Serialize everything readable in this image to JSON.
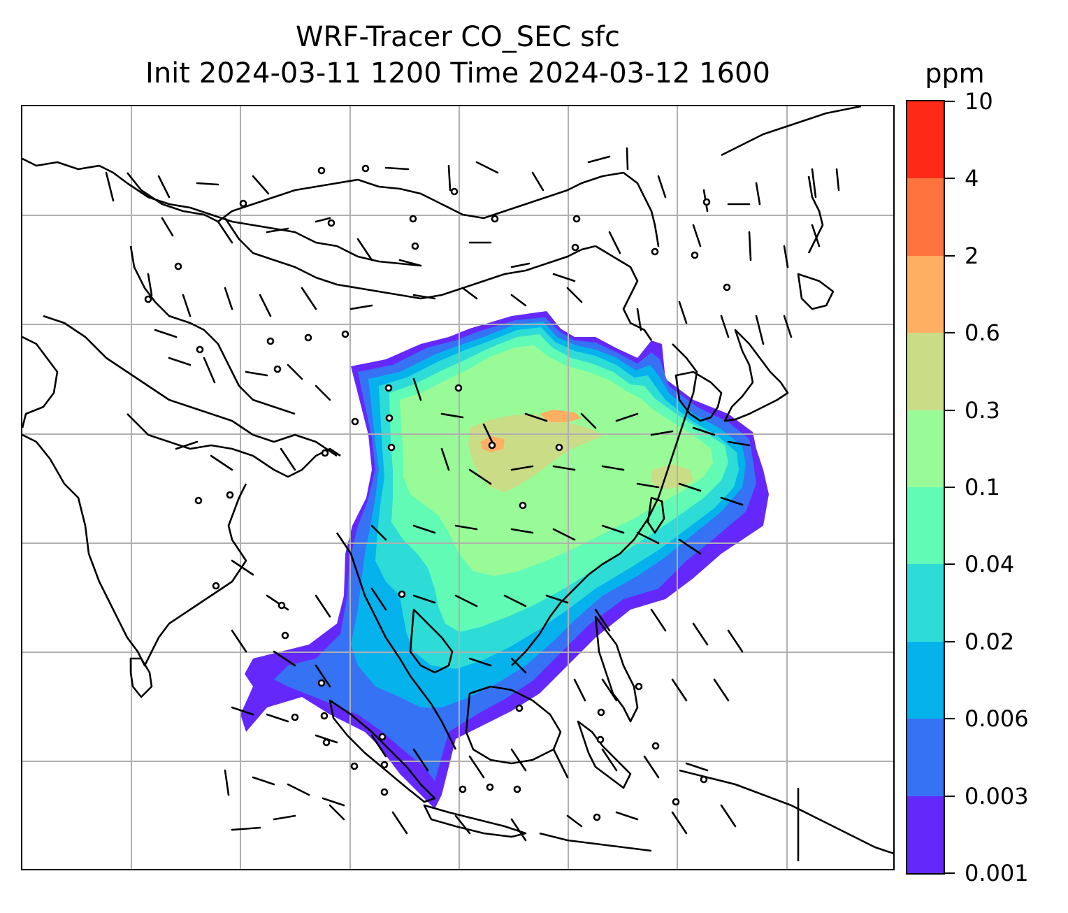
{
  "title_line1": "WRF-Tracer CO_SEC sfc",
  "title_line2": "Init 2024-03-11 1200 Time 2024-03-12 1600",
  "colorbar": {
    "unit": "ppm",
    "levels": [
      "0.001",
      "0.003",
      "0.006",
      "0.02",
      "0.04",
      "0.1",
      "0.3",
      "0.6",
      "2",
      "4",
      "10"
    ],
    "colors": [
      "#6429fa",
      "#3573f4",
      "#06b2ec",
      "#2edcd7",
      "#62fbb6",
      "#98fb98",
      "#cbdc86",
      "#feaf61",
      "#fe723e",
      "#fe2a17"
    ]
  },
  "map": {
    "fill_colors": {
      "lowest": "#6429fa",
      "low": "#3573f4",
      "mid_low": "#06b2ec",
      "mid": "#2edcd7",
      "mid_high": "#62fbb6",
      "high": "#98fb98",
      "highest": "#cbdc86"
    },
    "gridline_color": "#b0b0b0",
    "coastline_color": "#000000"
  }
}
